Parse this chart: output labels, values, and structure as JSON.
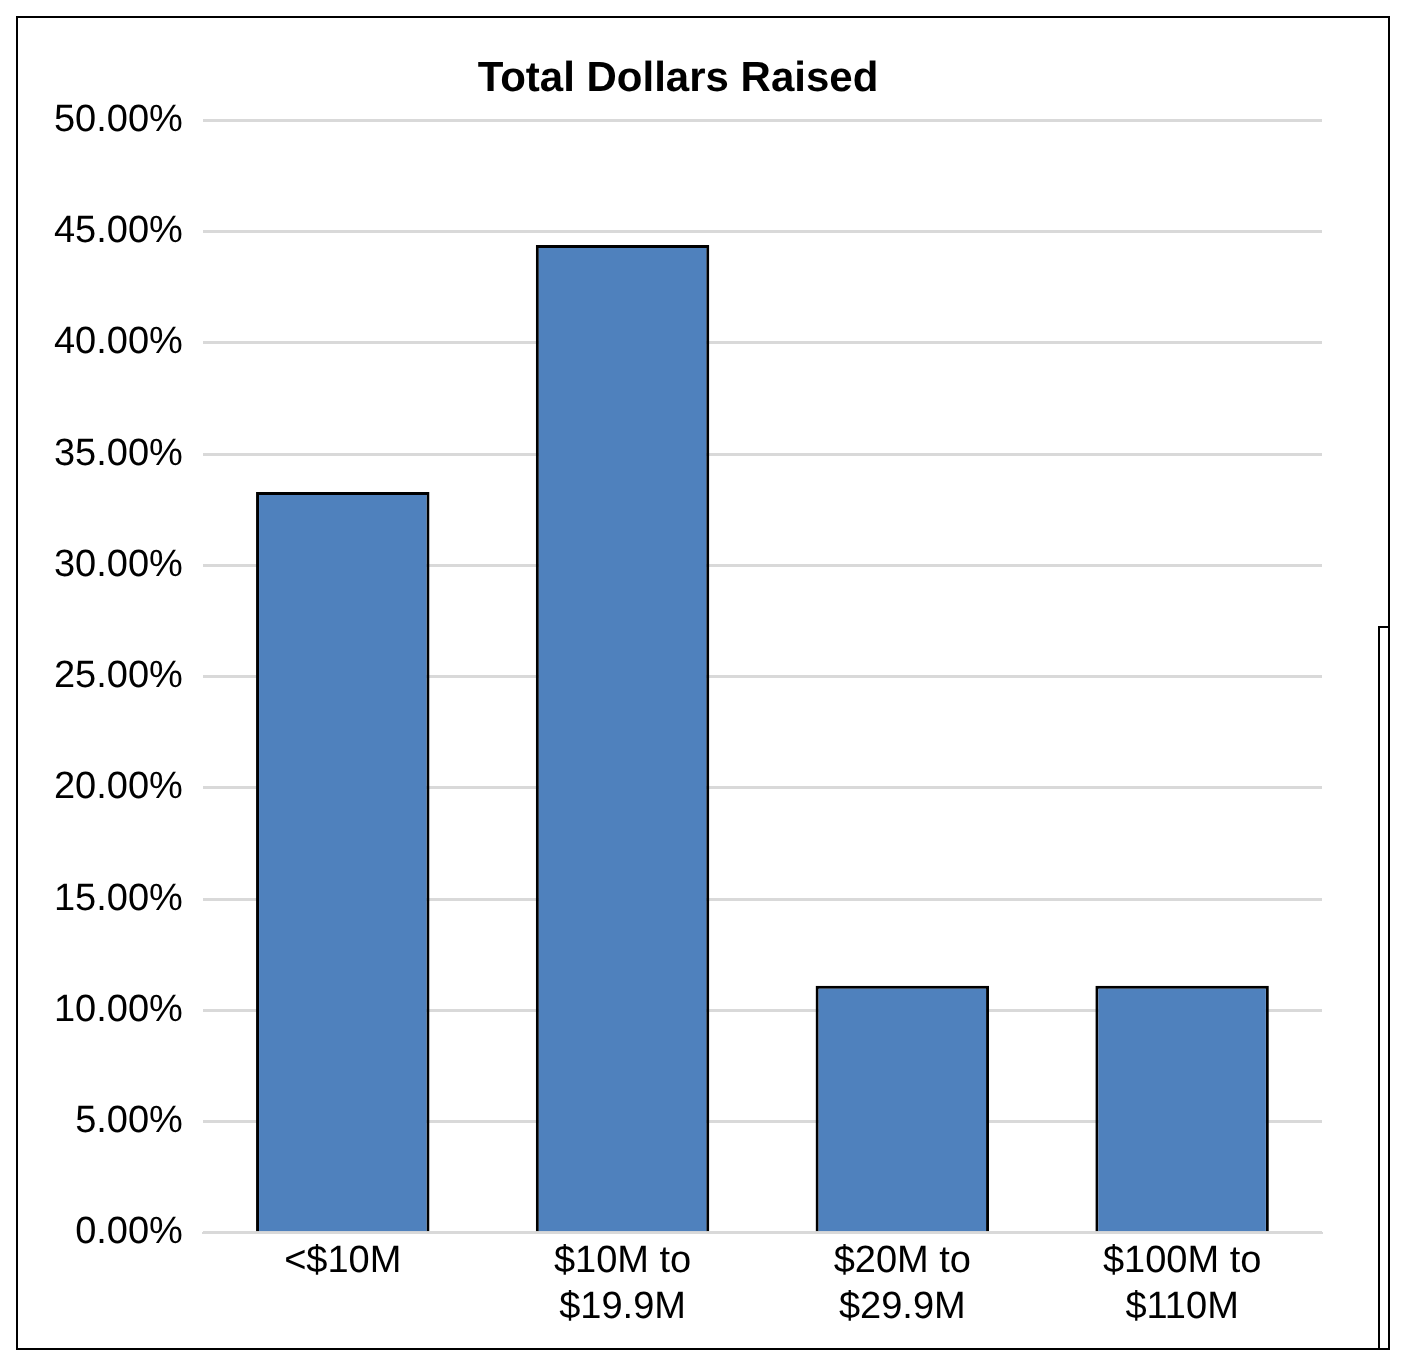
{
  "chart_data": {
    "type": "bar",
    "title": "Total Dollars Raised",
    "categories": [
      "<$10M",
      "$10M to $19.9M",
      "$20M to $29.9M",
      "$100M to $110M"
    ],
    "values": [
      33.3,
      44.4,
      11.1,
      11.1
    ],
    "color": "#4f81bd",
    "ylim": [
      0,
      50
    ],
    "yticks": [
      {
        "value": 0,
        "label": "0.00%"
      },
      {
        "value": 5,
        "label": "5.00%"
      },
      {
        "value": 10,
        "label": "10.00%"
      },
      {
        "value": 15,
        "label": "15.00%"
      },
      {
        "value": 20,
        "label": "20.00%"
      },
      {
        "value": 25,
        "label": "25.00%"
      },
      {
        "value": 30,
        "label": "30.00%"
      },
      {
        "value": 35,
        "label": "35.00%"
      },
      {
        "value": 40,
        "label": "40.00%"
      },
      {
        "value": 45,
        "label": "45.00%"
      },
      {
        "value": 50,
        "label": "50.00%"
      }
    ],
    "grid": "y",
    "legend": false
  }
}
